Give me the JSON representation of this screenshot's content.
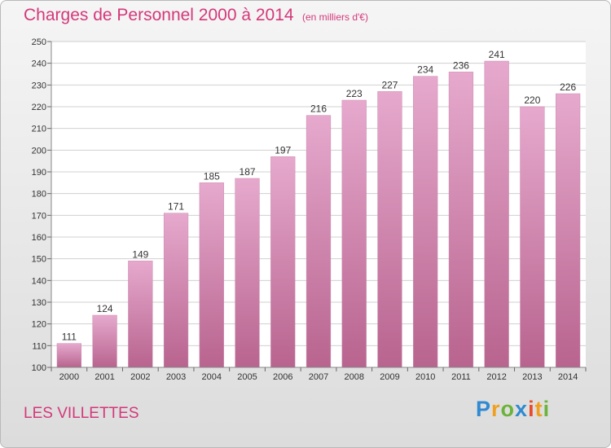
{
  "header": {
    "title": "Charges de Personnel 2000 à 2014",
    "unit": "(en milliers d'€)"
  },
  "footer": {
    "commune": "LES VILLETTES",
    "logo": "Proxiti"
  },
  "colors": {
    "title": "#d4387a",
    "bar_top": "#e6a9cd",
    "bar_bottom": "#b8648f",
    "grid": "#d0d0d0"
  },
  "chart_data": {
    "type": "bar",
    "title": "Charges de Personnel 2000 à 2014",
    "subtitle": "(en milliers d'€)",
    "xlabel": "",
    "ylabel": "",
    "categories": [
      "2000",
      "2001",
      "2002",
      "2003",
      "2004",
      "2005",
      "2006",
      "2007",
      "2008",
      "2009",
      "2010",
      "2011",
      "2012",
      "2013",
      "2014"
    ],
    "values": [
      111,
      124,
      149,
      171,
      185,
      187,
      197,
      216,
      223,
      227,
      234,
      236,
      241,
      220,
      226
    ],
    "ylim": [
      100,
      250
    ],
    "yticks": [
      100,
      110,
      120,
      130,
      140,
      150,
      160,
      170,
      180,
      190,
      200,
      210,
      220,
      230,
      240,
      250
    ],
    "grid": true,
    "legend": "none"
  }
}
